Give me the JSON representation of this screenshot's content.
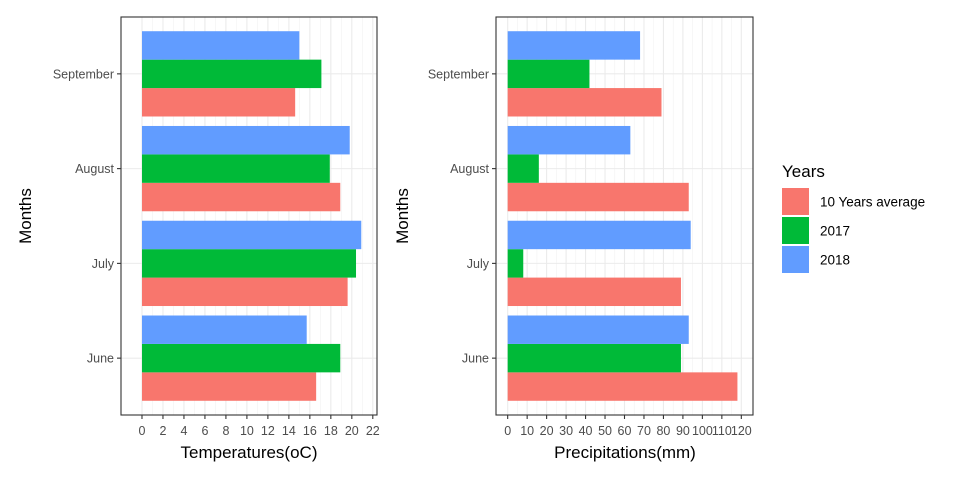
{
  "legend": {
    "title": "Years",
    "items": [
      {
        "label": "10 Years average",
        "color": "#F8766D"
      },
      {
        "label": "2017",
        "color": "#00BA38"
      },
      {
        "label": "2018",
        "color": "#619CFF"
      }
    ]
  },
  "chart_data": [
    {
      "type": "bar",
      "orientation": "horizontal",
      "xlabel": "Temperatures(oC)",
      "ylabel": "Months",
      "categories": [
        "June",
        "July",
        "August",
        "September"
      ],
      "xlim": [
        -2,
        22.4
      ],
      "xticks": [
        0,
        2,
        4,
        6,
        8,
        10,
        12,
        14,
        16,
        18,
        20,
        22
      ],
      "grid": true,
      "series": [
        {
          "name": "10 Years average",
          "color": "#F8766D",
          "values": [
            16.6,
            19.6,
            18.9,
            14.6
          ]
        },
        {
          "name": "2017",
          "color": "#00BA38",
          "values": [
            18.9,
            20.4,
            17.9,
            17.1
          ]
        },
        {
          "name": "2018",
          "color": "#619CFF",
          "values": [
            15.7,
            20.9,
            19.8,
            15.0
          ]
        }
      ]
    },
    {
      "type": "bar",
      "orientation": "horizontal",
      "xlabel": "Precipitations(mm)",
      "ylabel": "Months",
      "categories": [
        "June",
        "July",
        "August",
        "September"
      ],
      "xlim": [
        -6,
        126
      ],
      "xticks": [
        0,
        10,
        20,
        30,
        40,
        50,
        60,
        70,
        80,
        90,
        100,
        110,
        120
      ],
      "grid": true,
      "series": [
        {
          "name": "10 Years average",
          "color": "#F8766D",
          "values": [
            118,
            89,
            93,
            79
          ]
        },
        {
          "name": "2017",
          "color": "#00BA38",
          "values": [
            89,
            8,
            16,
            42
          ]
        },
        {
          "name": "2018",
          "color": "#619CFF",
          "values": [
            93,
            94,
            63,
            68
          ]
        }
      ]
    }
  ]
}
